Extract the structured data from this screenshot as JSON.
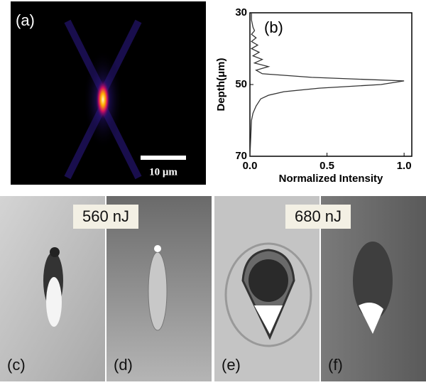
{
  "panels": [
    {
      "label": "(a)"
    },
    {
      "label": "(c)"
    },
    {
      "label": "(d)"
    },
    {
      "label": "(e)"
    },
    {
      "label": "(f)"
    }
  ],
  "scale_bar": "10 μm",
  "energy_labels": [
    "560 nJ",
    "680 nJ"
  ],
  "chart_data": {
    "type": "line",
    "panel_label": "(b)",
    "xlabel": "Normalized Intensity",
    "ylabel": "Depth(μm)",
    "y": [
      30,
      32,
      34,
      35,
      36,
      37,
      38,
      39,
      40,
      41,
      42,
      43,
      44,
      45,
      46,
      47,
      48,
      49,
      50,
      51,
      52,
      53,
      54,
      56,
      58,
      60,
      65,
      70
    ],
    "values": [
      0.01,
      0.01,
      0.02,
      0.03,
      0.01,
      0.04,
      0.01,
      0.05,
      0.01,
      0.06,
      0.02,
      0.08,
      0.03,
      0.12,
      0.04,
      0.08,
      0.4,
      1.0,
      0.85,
      0.45,
      0.22,
      0.12,
      0.07,
      0.04,
      0.02,
      0.01,
      0.005,
      0
    ],
    "color": "#333333",
    "xlim": [
      0,
      1.05
    ],
    "ylim": [
      30,
      70
    ],
    "invert_y": true,
    "xticks": [
      {
        "value": 0,
        "label": "0.0"
      },
      {
        "value": 0.5,
        "label": "0.5"
      },
      {
        "value": 1,
        "label": "1.0"
      }
    ],
    "yticks": [
      30,
      50,
      70
    ]
  }
}
